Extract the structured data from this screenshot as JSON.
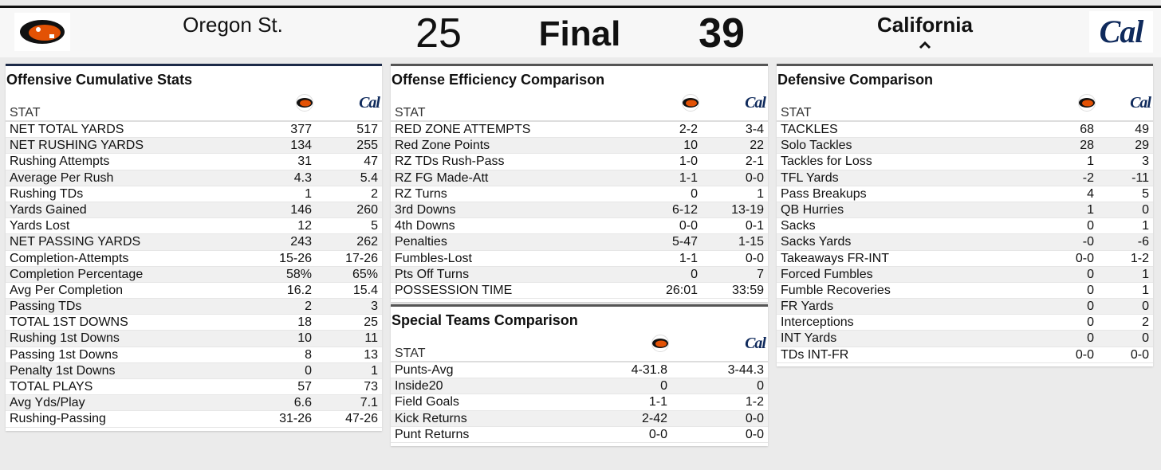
{
  "header": {
    "home_team": "Oregon St.",
    "home_score": 25,
    "status": "Final",
    "away_score": 39,
    "away_team": "California",
    "away_logo": "Cal"
  },
  "sections": [
    {
      "title": "Offensive Cumulative Stats",
      "column_header": "STAT",
      "rows": [
        [
          "NET TOTAL YARDS",
          377,
          517
        ],
        [
          "NET RUSHING YARDS",
          134,
          255
        ],
        [
          "Rushing Attempts",
          31,
          47
        ],
        [
          "Average Per Rush",
          4.3,
          5.4
        ],
        [
          "Rushing TDs",
          1,
          2
        ],
        [
          "Yards Gained",
          146,
          260
        ],
        [
          "Yards Lost",
          12,
          5
        ],
        [
          "NET PASSING YARDS",
          243,
          262
        ],
        [
          "Completion-Attempts",
          "15-26",
          "17-26"
        ],
        [
          "Completion Percentage",
          "58%",
          "65%"
        ],
        [
          "Avg Per Completion",
          16.2,
          15.4
        ],
        [
          "Passing TDs",
          2,
          3
        ],
        [
          "TOTAL 1ST DOWNS",
          18,
          25
        ],
        [
          "Rushing 1st Downs",
          10,
          11
        ],
        [
          "Passing 1st Downs",
          8,
          13
        ],
        [
          "Penalty 1st Downs",
          0,
          1
        ],
        [
          "TOTAL PLAYS",
          57,
          73
        ],
        [
          "Avg Yds/Play",
          6.6,
          7.1
        ],
        [
          "Rushing-Passing",
          "31-26",
          "47-26"
        ]
      ]
    },
    {
      "title": "Offense Efficiency Comparison",
      "column_header": "STAT",
      "rows": [
        [
          "RED ZONE ATTEMPTS",
          "2-2",
          "3-4"
        ],
        [
          "Red Zone Points",
          10,
          22
        ],
        [
          "RZ TDs Rush-Pass",
          "1-0",
          "2-1"
        ],
        [
          "RZ FG Made-Att",
          "1-1",
          "0-0"
        ],
        [
          "RZ Turns",
          0,
          1
        ],
        [
          "3rd Downs",
          "6-12",
          "13-19"
        ],
        [
          "4th Downs",
          "0-0",
          "0-1"
        ],
        [
          "Penalties",
          "5-47",
          "1-15"
        ],
        [
          "Fumbles-Lost",
          "1-1",
          "0-0"
        ],
        [
          "Pts Off Turns",
          0,
          7
        ],
        [
          "POSSESSION TIME",
          "26:01",
          "33:59"
        ]
      ]
    },
    {
      "title": "Special Teams Comparison",
      "column_header": "STAT",
      "rows": [
        [
          "Punts-Avg",
          "4-31.8",
          "3-44.3"
        ],
        [
          "Inside20",
          0,
          0
        ],
        [
          "Field Goals",
          "1-1",
          "1-2"
        ],
        [
          "Kick Returns",
          "2-42",
          "0-0"
        ],
        [
          "Punt Returns",
          "0-0",
          "0-0"
        ]
      ]
    },
    {
      "title": "Defensive Comparison",
      "column_header": "STAT",
      "rows": [
        [
          "TACKLES",
          68,
          49
        ],
        [
          "Solo Tackles",
          28,
          29
        ],
        [
          "Tackles for Loss",
          1,
          3
        ],
        [
          "TFL Yards",
          -2,
          -11
        ],
        [
          "Pass Breakups",
          4,
          5
        ],
        [
          "QB Hurries",
          1,
          0
        ],
        [
          "Sacks",
          0,
          1
        ],
        [
          "Sacks Yards",
          "-0",
          "-6"
        ],
        [
          "Takeaways FR-INT",
          "0-0",
          "1-2"
        ],
        [
          "Forced Fumbles",
          0,
          1
        ],
        [
          "Fumble Recoveries",
          0,
          1
        ],
        [
          "FR Yards",
          0,
          0
        ],
        [
          "Interceptions",
          0,
          2
        ],
        [
          "INT Yards",
          0,
          0
        ],
        [
          "TDs INT-FR",
          "0-0",
          "0-0"
        ]
      ]
    }
  ]
}
